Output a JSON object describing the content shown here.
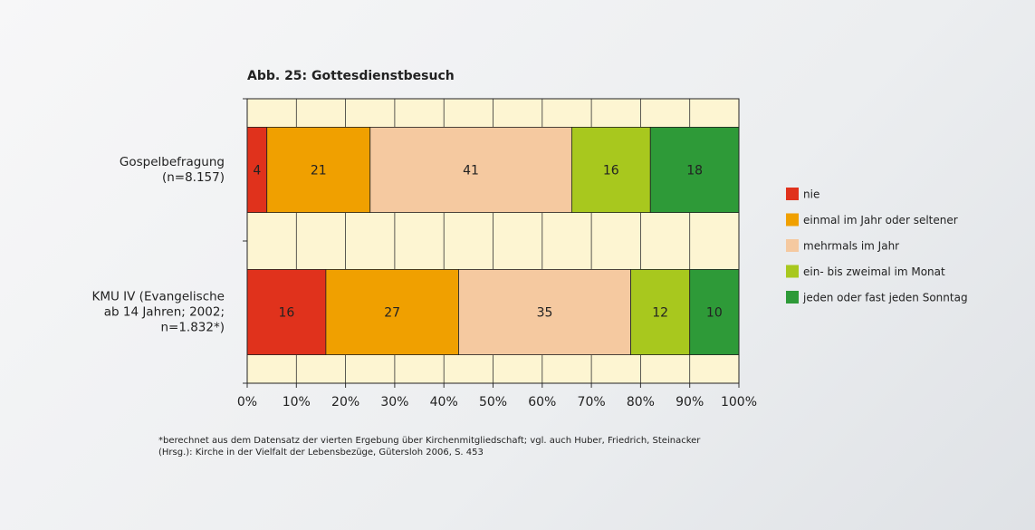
{
  "chart_data": {
    "type": "stacked_barh",
    "title": "Abb. 25: Gottesdienstbesuch",
    "categories": [
      "Gospelbefragung\n(n=8.157)",
      "KMU IV (Evangelische\nab 14 Jahren; 2002;\nn=1.832*)"
    ],
    "series": [
      {
        "name": "nie",
        "color": "#e0321c",
        "values": [
          4,
          16
        ]
      },
      {
        "name": "einmal im Jahr oder seltener",
        "color": "#f0a000",
        "values": [
          21,
          27
        ]
      },
      {
        "name": "mehrmals im Jahr",
        "color": "#f5c9a0",
        "values": [
          41,
          35
        ]
      },
      {
        "name": "ein- bis zweimal im Monat",
        "color": "#a8c81e",
        "values": [
          16,
          12
        ]
      },
      {
        "name": "jeden oder fast jeden Sonntag",
        "color": "#2e9a38",
        "values": [
          18,
          10
        ]
      }
    ],
    "xlim": [
      0,
      100
    ],
    "xticks": [
      {
        "value": 0,
        "label": "0%"
      },
      {
        "value": 10,
        "label": "10%"
      },
      {
        "value": 20,
        "label": "20%"
      },
      {
        "value": 30,
        "label": "30%"
      },
      {
        "value": 40,
        "label": "40%"
      },
      {
        "value": 50,
        "label": "50%"
      },
      {
        "value": 60,
        "label": "60%"
      },
      {
        "value": 70,
        "label": "70%"
      },
      {
        "value": 80,
        "label": "80%"
      },
      {
        "value": 90,
        "label": "90%"
      },
      {
        "value": 100,
        "label": "100%"
      }
    ],
    "grid": true,
    "legend": "right",
    "footnote": "*berechnet aus dem Datensatz der vierten Ergebung über Kirchenmitgliedschaft; vgl. auch Huber, Friedrich, Steinacker\n(Hrsg.): Kirche in der Vielfalt der Lebensbezüge, Gütersloh 2006, S. 453"
  }
}
